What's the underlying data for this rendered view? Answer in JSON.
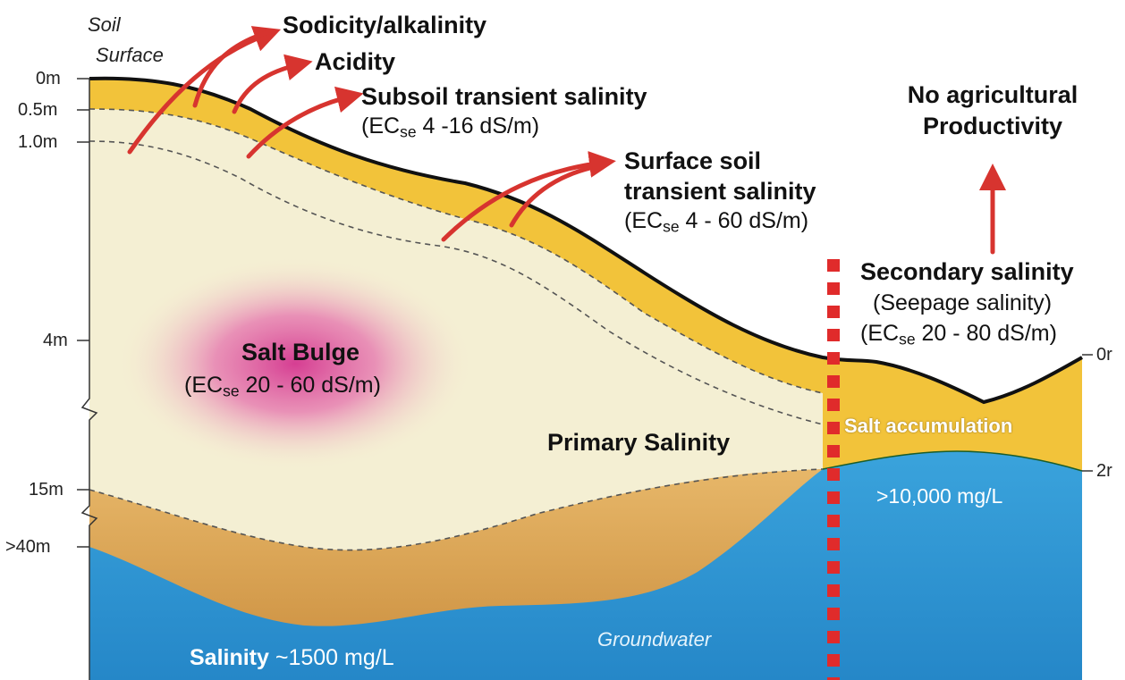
{
  "surface_label": [
    "Soil",
    "Surface"
  ],
  "depths_left": [
    "0m",
    "0.5m",
    "1.0m",
    "4m",
    "15m",
    ">40m"
  ],
  "depths_right": [
    "0r",
    "2r"
  ],
  "impacts": {
    "sodicity": "Sodicity/alkalinity",
    "acidity": "Acidity",
    "subsoil_title": "Subsoil transient salinity",
    "subsoil_ec_prefix": "(EC",
    "ec_sub": "se",
    "subsoil_ec_rest": " 4 -16 dS/m)",
    "surface_title_1": "Surface soil",
    "surface_title_2": "transient salinity",
    "surface_ec_prefix": "(EC",
    "surface_ec_rest": " 4 - 60 dS/m)"
  },
  "no_prod": [
    "No agricultural",
    "Productivity"
  ],
  "secondary": {
    "title": "Secondary salinity",
    "sub": "(Seepage salinity)",
    "ec_prefix": "(EC",
    "ec_rest": " 20 - 80 dS/m)"
  },
  "bulge": {
    "title": "Salt Bulge",
    "ec_prefix": "(EC",
    "ec_rest": " 20 - 60 dS/m)"
  },
  "primary": "Primary Salinity",
  "salt_accumulation": "Salt accumulation",
  "gw_salinity_right": ">10,000 mg/L",
  "gw_label": "Groundwater",
  "gw_salinity_left_bold": "Salinity",
  "gw_salinity_left_rest": " ~1500 mg/L",
  "colors": {
    "topsoil": "#f2c33a",
    "subsoil": "#f4efd3",
    "deep_layer": "#d9a24e",
    "groundwater": "#2f98d6",
    "arrow": "#d7342f",
    "seepage_marker": "#e02b2b",
    "bulge": "#d63c93"
  }
}
